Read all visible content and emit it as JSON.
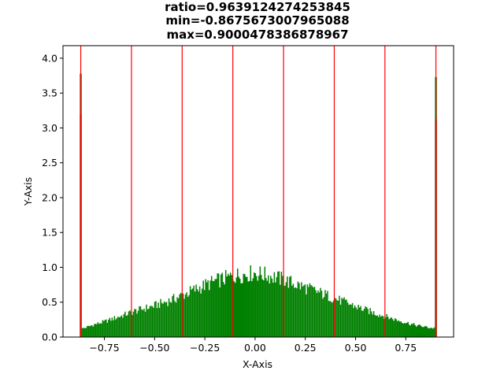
{
  "chart_data": {
    "type": "bar",
    "title_lines": [
      "ratio=0.9639124274253845",
      "min=-0.8675673007965088",
      "max=0.9000478386878967"
    ],
    "xlabel": "X-Axis",
    "ylabel": "Y-Axis",
    "xlim": [
      -0.956,
      0.988
    ],
    "ylim": [
      0,
      4.18
    ],
    "x_ticks": [
      -0.75,
      -0.5,
      -0.25,
      0.0,
      0.25,
      0.5,
      0.75
    ],
    "x_tick_labels": [
      "−0.75",
      "−0.50",
      "−0.25",
      "0.00",
      "0.25",
      "0.50",
      "0.75"
    ],
    "y_ticks": [
      0.0,
      0.5,
      1.0,
      1.5,
      2.0,
      2.5,
      3.0,
      3.5,
      4.0
    ],
    "y_tick_labels": [
      "0.0",
      "0.5",
      "1.0",
      "1.5",
      "2.0",
      "2.5",
      "3.0",
      "3.5",
      "4.0"
    ],
    "grid": false,
    "bar_color": "#008000",
    "line_color": "#ff0000",
    "vertical_lines_x": [
      -0.8676,
      -0.6153,
      -0.363,
      -0.1107,
      0.1417,
      0.394,
      0.6463,
      0.9
    ],
    "histogram": {
      "range": [
        -0.8676,
        0.9
      ],
      "bins": 300,
      "profile_points": [
        [
          -0.86,
          0.12
        ],
        [
          -0.8,
          0.18
        ],
        [
          -0.75,
          0.22
        ],
        [
          -0.7,
          0.27
        ],
        [
          -0.65,
          0.32
        ],
        [
          -0.6,
          0.37
        ],
        [
          -0.5,
          0.45
        ],
        [
          -0.4,
          0.55
        ],
        [
          -0.3,
          0.68
        ],
        [
          -0.2,
          0.8
        ],
        [
          -0.1,
          0.88
        ],
        [
          0.0,
          0.92
        ],
        [
          0.1,
          0.86
        ],
        [
          0.2,
          0.76
        ],
        [
          0.3,
          0.66
        ],
        [
          0.4,
          0.55
        ],
        [
          0.5,
          0.44
        ],
        [
          0.6,
          0.34
        ],
        [
          0.7,
          0.25
        ],
        [
          0.8,
          0.17
        ],
        [
          0.88,
          0.13
        ]
      ],
      "edge_bars": [
        {
          "x": -0.8676,
          "value": 3.78
        },
        {
          "x": 0.9,
          "value": 3.73
        }
      ],
      "edge_overlay_bars": [
        {
          "x": -0.8676,
          "value": 3.2
        },
        {
          "x": 0.9,
          "value": 3.12
        }
      ],
      "overlay_color": "#8b3a0f"
    }
  }
}
